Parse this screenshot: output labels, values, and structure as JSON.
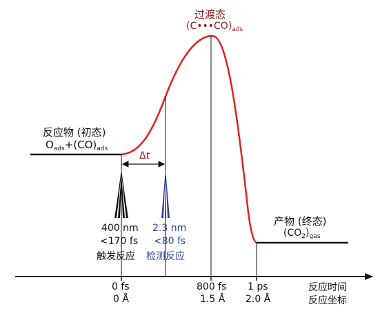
{
  "colors": {
    "curve": "#e02020",
    "transition_label": "#8b1a1a",
    "probe": "#2a3f9a",
    "lines": "#111111"
  },
  "reactant": {
    "title": "反应物 (初态)",
    "formula_o": "O",
    "formula_o_sub": "ads",
    "formula_mid": "+(CO)",
    "formula_co_sub": "ads"
  },
  "transition_state": {
    "title": "过渡态",
    "formula": "(C•••CO)",
    "formula_sub": "ads"
  },
  "product": {
    "title": "产物 (终态)",
    "formula_pre": "(CO",
    "formula_sub2": "2",
    "formula_post": ")",
    "formula_sub": "gas"
  },
  "delta_t": {
    "delta": "Δ",
    "t": "t"
  },
  "pump": {
    "wavelength": "400 nm",
    "duration": "<170 fs",
    "label": "触发反应"
  },
  "probe": {
    "wavelength": "2.3 nm",
    "duration": "<80 fs",
    "label": "检测反应"
  },
  "axis": {
    "label_time": "反应时间",
    "label_coord": "反应坐标",
    "ticks": [
      {
        "time": "0 fs",
        "coord": "0 Å"
      },
      {
        "time": "800 fs",
        "coord": "1.5 Å"
      },
      {
        "time": "1 ps",
        "coord": "2.0 Å"
      }
    ]
  }
}
